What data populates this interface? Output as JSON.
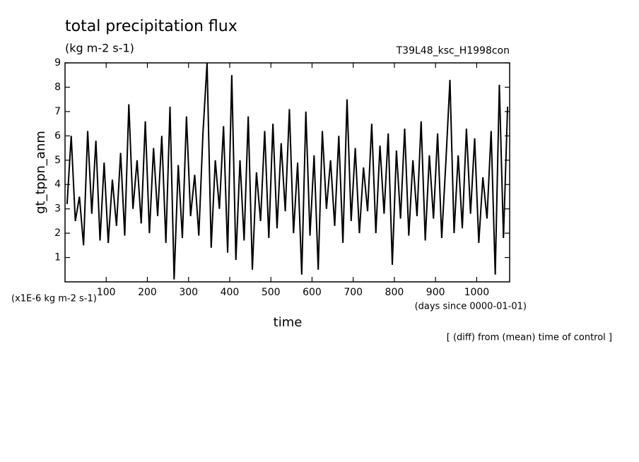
{
  "chart_data": {
    "type": "line",
    "title": "total precipitation flux",
    "subtitle": "(kg m-2 s-1)",
    "run_label": "T39L48_ksc_H1998con",
    "ylabel": "gt_tppn_anm",
    "y_unit_note": "(x1E-6 kg m-2 s-1)",
    "xlabel": "time",
    "x_unit_note": "(days since 0000-01-01)",
    "annotation": "[ (diff) from (mean) time of control ]",
    "xlim": [
      0,
      1080
    ],
    "ylim": [
      0,
      9
    ],
    "xticks": [
      100,
      200,
      300,
      400,
      500,
      600,
      700,
      800,
      900,
      1000
    ],
    "yticks": [
      1,
      2,
      3,
      4,
      5,
      6,
      7,
      8,
      9
    ],
    "x": [
      5,
      15,
      25,
      35,
      45,
      55,
      65,
      75,
      85,
      95,
      105,
      115,
      125,
      135,
      145,
      155,
      165,
      175,
      185,
      195,
      205,
      215,
      225,
      235,
      245,
      255,
      265,
      275,
      285,
      295,
      305,
      315,
      325,
      335,
      345,
      355,
      365,
      375,
      385,
      395,
      405,
      415,
      425,
      435,
      445,
      455,
      465,
      475,
      485,
      495,
      505,
      515,
      525,
      535,
      545,
      555,
      565,
      575,
      585,
      595,
      605,
      615,
      625,
      635,
      645,
      655,
      665,
      675,
      685,
      695,
      705,
      715,
      725,
      735,
      745,
      755,
      765,
      775,
      785,
      795,
      805,
      815,
      825,
      835,
      845,
      855,
      865,
      875,
      885,
      895,
      905,
      915,
      925,
      935,
      945,
      955,
      965,
      975,
      985,
      995,
      1005,
      1015,
      1025,
      1035,
      1045,
      1055,
      1065,
      1075
    ],
    "series": [
      {
        "color": "#000000",
        "values": [
          3.2,
          6.0,
          2.5,
          3.5,
          1.5,
          6.2,
          2.8,
          5.8,
          1.7,
          4.9,
          1.6,
          4.2,
          2.3,
          5.3,
          1.9,
          7.3,
          3.0,
          5.0,
          2.4,
          6.6,
          2.0,
          5.5,
          2.7,
          6.0,
          1.6,
          7.2,
          0.1,
          4.8,
          1.8,
          6.8,
          2.7,
          4.4,
          1.9,
          6.1,
          9.0,
          1.4,
          5.0,
          3.0,
          6.4,
          1.2,
          8.5,
          0.9,
          5.0,
          1.7,
          6.8,
          0.5,
          4.5,
          2.5,
          6.2,
          1.8,
          6.5,
          2.2,
          5.7,
          2.9,
          7.1,
          2.0,
          4.9,
          0.3,
          7.0,
          1.9,
          5.2,
          0.5,
          6.2,
          3.0,
          5.0,
          2.3,
          6.0,
          1.6,
          7.5,
          2.5,
          5.5,
          2.0,
          4.7,
          2.9,
          6.5,
          2.0,
          5.6,
          2.8,
          6.1,
          0.7,
          5.4,
          2.6,
          6.3,
          1.9,
          5.0,
          2.7,
          6.6,
          1.7,
          5.2,
          2.6,
          6.1,
          1.8,
          4.9,
          8.3,
          2.0,
          5.2,
          2.2,
          6.3,
          2.8,
          5.9,
          1.6,
          4.3,
          2.6,
          6.2,
          0.3,
          8.1,
          1.8,
          7.2
        ]
      }
    ]
  }
}
